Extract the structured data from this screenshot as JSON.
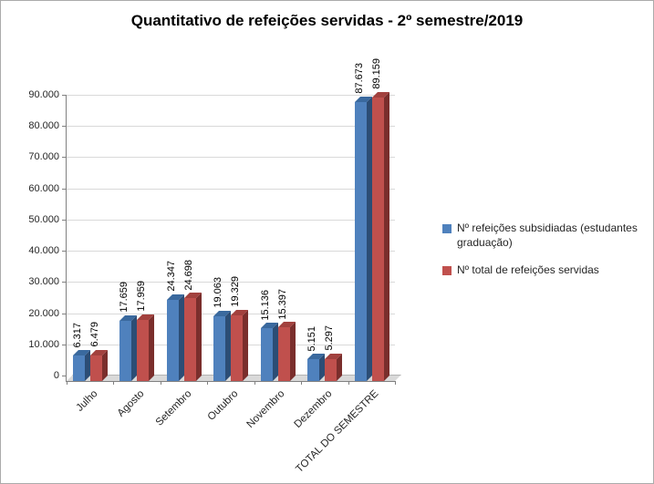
{
  "chart_data": {
    "type": "bar",
    "title": "Quantitativo de refeições servidas - 2º semestre/2019",
    "categories": [
      "Julho",
      "Agosto",
      "Setembro",
      "Outubro",
      "Novembro",
      "Dezembro",
      "TOTAL DO SEMESTRE"
    ],
    "series": [
      {
        "name": "Nº refeições subsidiadas (estudantes graduação)",
        "color": "#4F81BD",
        "side_color": "#2C4D75",
        "top_color": "#3A699E",
        "values": [
          6317,
          17659,
          24347,
          19063,
          15136,
          5151,
          87673
        ]
      },
      {
        "name": "Nº total  de refeições servidas",
        "color": "#C0504D",
        "side_color": "#7A2E2C",
        "top_color": "#A2413E",
        "values": [
          6479,
          17959,
          24698,
          19329,
          15397,
          5297,
          89159
        ]
      }
    ],
    "ylim": [
      0,
      90000
    ],
    "ytick_step": 10000,
    "ytick_labels": [
      "0",
      "10.000",
      "20.000",
      "30.000",
      "40.000",
      "50.000",
      "60.000",
      "70.000",
      "80.000",
      "90.000"
    ],
    "grid": true,
    "legend_position": "right",
    "data_labels": "rotated-vertical"
  },
  "colors": {
    "grid": "#D9D9D9",
    "axis": "#808080",
    "floor": "#D9D9D9",
    "frame_border": "#ABABAB",
    "background": "#FFFFFF",
    "text": "#262626"
  }
}
